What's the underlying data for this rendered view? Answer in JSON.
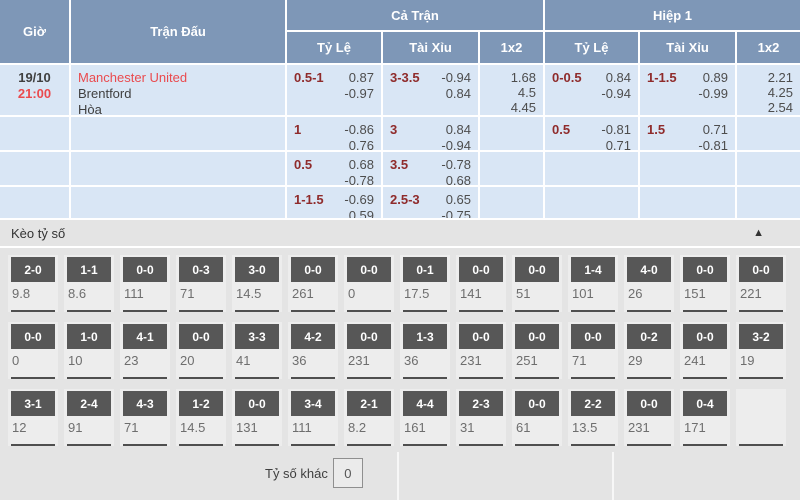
{
  "colors": {
    "header_bg": "#7e97b7",
    "row_bg": "#d9e6f5",
    "red": "#ea4a4e",
    "maroon": "#8f2b2b",
    "dark_text": "#3f3f3f",
    "odds_text": "#4d4d4d",
    "section_bg": "#e4e4e4",
    "cell_bg": "#ededed",
    "chip_bg": "#575757",
    "value_text": "#6e6e6e",
    "underline": "#4f4f4f"
  },
  "odds_table": {
    "headers": {
      "time": "Giờ",
      "match": "Trận Đấu",
      "full_match": "Cả Trận",
      "first_half": "Hiệp 1",
      "handicap": "Tỷ Lệ",
      "over_under": "Tài Xỉu",
      "one_x_two": "1x2"
    },
    "match_info": {
      "date": "19/10",
      "time": "21:00",
      "home": "Manchester United",
      "away": "Brentford",
      "draw": "Hòa"
    },
    "rows": [
      {
        "ft_hdp": {
          "line": "0.5-1",
          "odds": [
            "0.87",
            "-0.97"
          ]
        },
        "ft_ou": {
          "line": "3-3.5",
          "odds": [
            "-0.94",
            "0.84"
          ]
        },
        "ft_1x2": [
          "1.68",
          "4.5",
          "4.45"
        ],
        "h1_hdp": {
          "line": "0-0.5",
          "odds": [
            "0.84",
            "-0.94"
          ]
        },
        "h1_ou": {
          "line": "1-1.5",
          "odds": [
            "0.89",
            "-0.99"
          ]
        },
        "h1_1x2": [
          "2.21",
          "4.25",
          "2.54"
        ]
      },
      {
        "ft_hdp": {
          "line": "1",
          "odds": [
            "-0.86",
            "0.76"
          ]
        },
        "ft_ou": {
          "line": "3",
          "odds": [
            "0.84",
            "-0.94"
          ]
        },
        "ft_1x2": [],
        "h1_hdp": {
          "line": "0.5",
          "odds": [
            "-0.81",
            "0.71"
          ]
        },
        "h1_ou": {
          "line": "1.5",
          "odds": [
            "0.71",
            "-0.81"
          ]
        },
        "h1_1x2": []
      },
      {
        "ft_hdp": {
          "line": "0.5",
          "odds": [
            "0.68",
            "-0.78"
          ]
        },
        "ft_ou": {
          "line": "3.5",
          "odds": [
            "-0.78",
            "0.68"
          ]
        },
        "ft_1x2": [],
        "h1_hdp": null,
        "h1_ou": null,
        "h1_1x2": []
      },
      {
        "ft_hdp": {
          "line": "1-1.5",
          "odds": [
            "-0.69",
            "0.59"
          ]
        },
        "ft_ou": {
          "line": "2.5-3",
          "odds": [
            "0.65",
            "-0.75"
          ]
        },
        "ft_1x2": [],
        "h1_hdp": null,
        "h1_ou": null,
        "h1_1x2": []
      }
    ]
  },
  "score_section": {
    "title": "Kèo tỷ số",
    "collapse_icon": "▲",
    "rows": [
      [
        {
          "score": "2-0",
          "odds": "9.8"
        },
        {
          "score": "1-1",
          "odds": "8.6"
        },
        {
          "score": "0-0",
          "odds": "111"
        },
        {
          "score": "0-3",
          "odds": "71"
        },
        {
          "score": "3-0",
          "odds": "14.5"
        },
        {
          "score": "0-0",
          "odds": "261"
        },
        {
          "score": "0-0",
          "odds": "0"
        },
        {
          "score": "0-1",
          "odds": "17.5"
        },
        {
          "score": "0-0",
          "odds": "141"
        },
        {
          "score": "0-0",
          "odds": "51"
        },
        {
          "score": "1-4",
          "odds": "101"
        },
        {
          "score": "4-0",
          "odds": "26"
        },
        {
          "score": "0-0",
          "odds": "151"
        },
        {
          "score": "0-0",
          "odds": "221"
        }
      ],
      [
        {
          "score": "0-0",
          "odds": "0"
        },
        {
          "score": "1-0",
          "odds": "10"
        },
        {
          "score": "4-1",
          "odds": "23"
        },
        {
          "score": "0-0",
          "odds": "20"
        },
        {
          "score": "3-3",
          "odds": "41"
        },
        {
          "score": "4-2",
          "odds": "36"
        },
        {
          "score": "0-0",
          "odds": "231"
        },
        {
          "score": "1-3",
          "odds": "36"
        },
        {
          "score": "0-0",
          "odds": "231"
        },
        {
          "score": "0-0",
          "odds": "251"
        },
        {
          "score": "0-0",
          "odds": "71"
        },
        {
          "score": "0-2",
          "odds": "29"
        },
        {
          "score": "0-0",
          "odds": "241"
        },
        {
          "score": "3-2",
          "odds": "19"
        }
      ],
      [
        {
          "score": "3-1",
          "odds": "12"
        },
        {
          "score": "2-4",
          "odds": "91"
        },
        {
          "score": "4-3",
          "odds": "71"
        },
        {
          "score": "1-2",
          "odds": "14.5"
        },
        {
          "score": "0-0",
          "odds": "131"
        },
        {
          "score": "3-4",
          "odds": "111"
        },
        {
          "score": "2-1",
          "odds": "8.2"
        },
        {
          "score": "4-4",
          "odds": "161"
        },
        {
          "score": "2-3",
          "odds": "31"
        },
        {
          "score": "0-0",
          "odds": "61"
        },
        {
          "score": "2-2",
          "odds": "13.5"
        },
        {
          "score": "0-0",
          "odds": "231"
        },
        {
          "score": "0-4",
          "odds": "171"
        },
        {
          "score": "",
          "odds": ""
        }
      ]
    ],
    "other_score_label": "Tỷ số khác",
    "other_score_value": "0"
  }
}
